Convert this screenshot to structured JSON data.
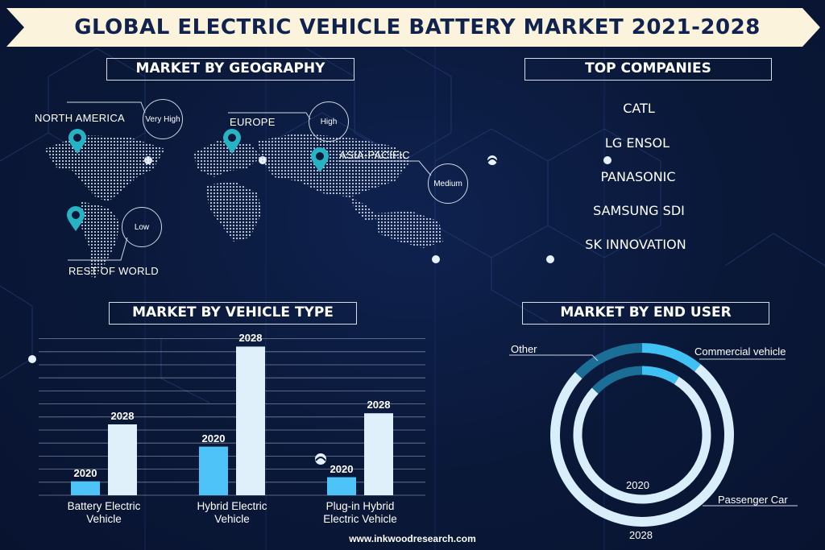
{
  "title": "GLOBAL ELECTRIC VEHICLE BATTERY MARKET 2021-2028",
  "geography": {
    "heading": "MARKET BY GEOGRAPHY",
    "regions": [
      {
        "name": "NORTH AMERICA",
        "level": "Very High"
      },
      {
        "name": "EUROPE",
        "level": "High"
      },
      {
        "name": "ASIA-PACIFIC",
        "level": "Medium"
      },
      {
        "name": "REST OF WORLD",
        "level": "Low"
      }
    ]
  },
  "companies": {
    "heading": "TOP COMPANIES",
    "items": [
      "CATL",
      "LG ENSOL",
      "PANASONIC",
      "SAMSUNG SDI",
      "SK INNOVATION"
    ]
  },
  "vehicle_type": {
    "heading": "MARKET BY VEHICLE TYPE"
  },
  "end_user": {
    "heading": "MARKET BY END USER"
  },
  "footer": "www.inkwoodresearch.com",
  "colors": {
    "background": "#0a1838",
    "banner": "#fbf3dc",
    "bar_2020": "#4dc3f7",
    "bar_2028": "#dff0fb",
    "donut_light": "#d8eefb",
    "donut_cyan": "#3fc1f3",
    "donut_dark": "#1b6e96",
    "pin": "#27b3c4"
  },
  "chart_data": [
    {
      "type": "bar",
      "categories": [
        "Battery Electric Vehicle",
        "Hybrid Electric Vehicle",
        "Plug-in Hybrid Electric Vehicle"
      ],
      "series": [
        {
          "name": "2020",
          "values": [
            1.0,
            3.5,
            1.3
          ]
        },
        {
          "name": "2028",
          "values": [
            5.1,
            10.7,
            5.9
          ]
        }
      ]
    },
    {
      "type": "pie",
      "series": [
        {
          "name": "2020",
          "labels": [
            "Commercial vehicle",
            "Passenger Car",
            "Other"
          ],
          "values": [
            9,
            78,
            13
          ]
        },
        {
          "name": "2028",
          "labels": [
            "Commercial vehicle",
            "Passenger Car",
            "Other"
          ],
          "values": [
            11,
            76,
            13
          ]
        }
      ]
    }
  ]
}
